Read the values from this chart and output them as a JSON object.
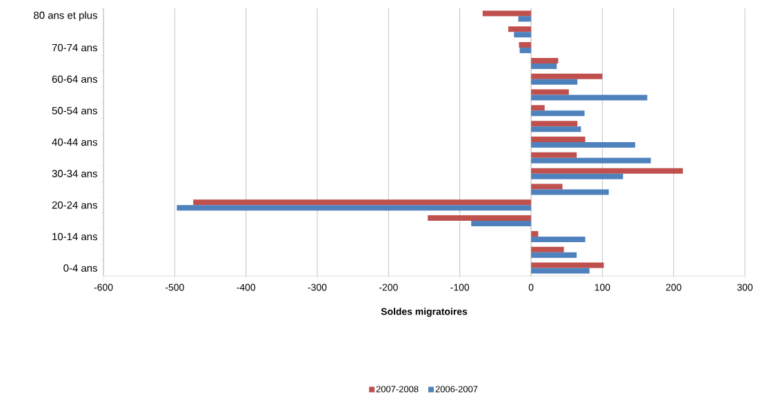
{
  "chart_data": {
    "type": "bar",
    "orientation": "horizontal",
    "xlabel": "Soldes migratoires",
    "categories": [
      "80 ans et plus",
      null,
      "70-74 ans",
      null,
      "60-64 ans",
      null,
      "50-54 ans",
      null,
      "40-44 ans",
      null,
      "30-34 ans",
      null,
      "20-24 ans",
      null,
      "10-14 ans",
      null,
      "0-4 ans"
    ],
    "series": [
      {
        "name": "2007-2008",
        "color": "#c0504d",
        "values": [
          -68,
          -32,
          -17,
          38,
          100,
          53,
          19,
          65,
          76,
          64,
          213,
          44,
          -474,
          -145,
          10,
          46,
          102
        ]
      },
      {
        "name": "2006-2007",
        "color": "#4f81bd",
        "values": [
          -18,
          -24,
          -16,
          36,
          65,
          163,
          75,
          70,
          146,
          168,
          129,
          109,
          -497,
          -84,
          76,
          64,
          82
        ]
      }
    ],
    "xlim": [
      -600,
      300
    ],
    "xticks": [
      -600,
      -500,
      -400,
      -300,
      -200,
      -100,
      0,
      100,
      200,
      300
    ],
    "grid": "x",
    "legend": "bottom"
  }
}
